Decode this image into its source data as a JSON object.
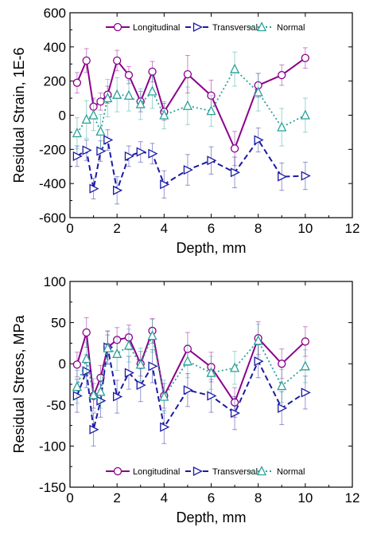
{
  "chart_data": [
    {
      "type": "line",
      "title": "",
      "xlabel": "Depth, mm",
      "ylabel": "Residual Strain, 1E-6",
      "xlim": [
        0,
        12
      ],
      "ylim": [
        -600,
        600
      ],
      "xticks": [
        0,
        2,
        4,
        6,
        8,
        10,
        12
      ],
      "yticks": [
        -600,
        -400,
        -200,
        0,
        200,
        400,
        600
      ],
      "grid": false,
      "legend_position": "top",
      "error_bars": true,
      "series": [
        {
          "name": "Longitudinal",
          "color": "#8b008b",
          "line_style": "solid",
          "marker": "circle",
          "x": [
            0.3,
            0.7,
            1.0,
            1.3,
            1.6,
            2.0,
            2.5,
            3.0,
            3.5,
            4.0,
            5.0,
            6.0,
            7.0,
            8.0,
            9.0,
            10.0
          ],
          "y": [
            190,
            320,
            50,
            80,
            120,
            320,
            235,
            80,
            255,
            20,
            240,
            115,
            -195,
            175,
            235,
            335
          ],
          "error": [
            60,
            70,
            50,
            50,
            50,
            60,
            50,
            60,
            60,
            50,
            110,
            90,
            100,
            70,
            60,
            60
          ]
        },
        {
          "name": "Transversal",
          "color": "#1a1aa6",
          "line_style": "dashed",
          "marker": "triangle-right",
          "x": [
            0.3,
            0.7,
            1.0,
            1.3,
            1.6,
            2.0,
            2.5,
            3.0,
            3.5,
            4.0,
            5.0,
            6.0,
            7.0,
            8.0,
            9.0,
            10.0
          ],
          "y": [
            -240,
            -205,
            -430,
            -210,
            -145,
            -440,
            -240,
            -215,
            -225,
            -405,
            -320,
            -265,
            -335,
            -145,
            -360,
            -355
          ],
          "error": [
            60,
            60,
            60,
            60,
            60,
            80,
            60,
            60,
            60,
            80,
            90,
            80,
            90,
            70,
            80,
            80
          ]
        },
        {
          "name": "Normal",
          "color": "#2aa198",
          "line_style": "dotted",
          "marker": "triangle-up",
          "x": [
            0.3,
            0.7,
            1.0,
            1.3,
            1.6,
            2.0,
            2.5,
            3.0,
            3.5,
            4.0,
            5.0,
            6.0,
            7.0,
            8.0,
            9.0,
            10.0
          ],
          "y": [
            -105,
            -25,
            0,
            -95,
            100,
            120,
            115,
            65,
            140,
            0,
            55,
            25,
            270,
            135,
            -70,
            0
          ],
          "error": [
            90,
            110,
            90,
            100,
            110,
            100,
            90,
            90,
            100,
            80,
            110,
            90,
            100,
            110,
            110,
            100
          ]
        }
      ]
    },
    {
      "type": "line",
      "title": "",
      "xlabel": "Depth, mm",
      "ylabel": "Residual Stress, MPa",
      "xlim": [
        0,
        12
      ],
      "ylim": [
        -150,
        100
      ],
      "xticks": [
        0,
        2,
        4,
        6,
        8,
        10,
        12
      ],
      "yticks": [
        -150,
        -100,
        -50,
        0,
        50,
        100
      ],
      "grid": false,
      "legend_position": "bottom",
      "error_bars": true,
      "series": [
        {
          "name": "Longitudinal",
          "color": "#8b008b",
          "line_style": "solid",
          "marker": "circle",
          "x": [
            0.3,
            0.7,
            1.0,
            1.3,
            1.6,
            2.0,
            2.5,
            3.0,
            3.5,
            4.0,
            5.0,
            6.0,
            7.0,
            8.0,
            9.0,
            10.0
          ],
          "y": [
            -1,
            38,
            -39,
            -17,
            20,
            29,
            32,
            0,
            40,
            -39,
            18,
            -4,
            -47,
            31,
            0,
            27
          ],
          "error": [
            15,
            18,
            15,
            15,
            15,
            15,
            15,
            15,
            15,
            15,
            20,
            18,
            18,
            20,
            18,
            18
          ]
        },
        {
          "name": "Transversal",
          "color": "#1a1aa6",
          "line_style": "dashed",
          "marker": "triangle-right",
          "x": [
            0.3,
            0.7,
            1.0,
            1.3,
            1.6,
            2.0,
            2.5,
            3.0,
            3.5,
            4.0,
            5.0,
            6.0,
            7.0,
            8.0,
            9.0,
            10.0
          ],
          "y": [
            -39,
            -9,
            -80,
            -45,
            20,
            -40,
            -11,
            -26,
            -3,
            -77,
            -32,
            -39,
            -60,
            3,
            -54,
            -35
          ],
          "error": [
            20,
            20,
            20,
            20,
            20,
            20,
            20,
            20,
            20,
            20,
            20,
            20,
            20,
            20,
            20,
            20
          ]
        },
        {
          "name": "Normal",
          "color": "#2aa198",
          "line_style": "dotted",
          "marker": "triangle-up",
          "x": [
            0.3,
            0.7,
            1.0,
            1.3,
            1.6,
            2.0,
            2.5,
            3.0,
            3.5,
            4.0,
            5.0,
            6.0,
            7.0,
            8.0,
            9.0,
            10.0
          ],
          "y": [
            -28,
            6,
            -38,
            -34,
            19,
            12,
            22,
            -1,
            34,
            -40,
            3,
            -11,
            -5,
            28,
            -27,
            -3
          ],
          "error": [
            20,
            20,
            20,
            20,
            20,
            20,
            20,
            20,
            20,
            20,
            20,
            20,
            20,
            20,
            20,
            20
          ]
        }
      ]
    }
  ]
}
